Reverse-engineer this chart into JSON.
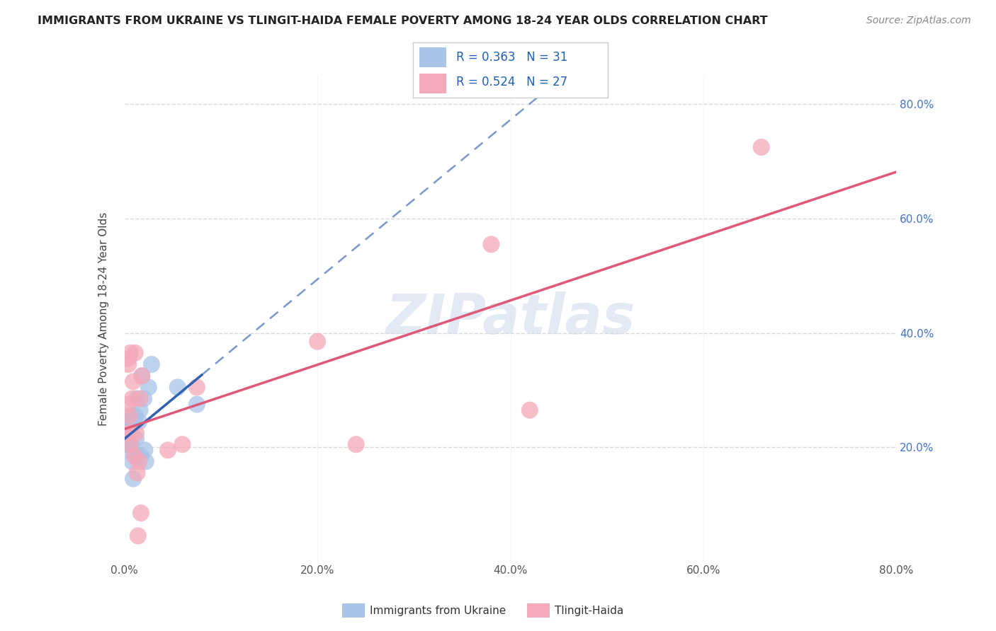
{
  "title": "IMMIGRANTS FROM UKRAINE VS TLINGIT-HAIDA FEMALE POVERTY AMONG 18-24 YEAR OLDS CORRELATION CHART",
  "source": "Source: ZipAtlas.com",
  "ylabel": "Female Poverty Among 18-24 Year Olds",
  "xlim": [
    0.0,
    0.8
  ],
  "ylim": [
    0.0,
    0.85
  ],
  "xtick_labels": [
    "0.0%",
    "",
    "",
    "",
    "",
    "",
    "",
    "",
    "20.0%",
    "",
    "",
    "",
    "",
    "",
    "",
    "",
    "40.0%",
    "",
    "",
    "",
    "",
    "",
    "",
    "",
    "60.0%",
    "",
    "",
    "",
    "",
    "",
    "",
    "",
    "80.0%"
  ],
  "xtick_vals": [
    0.0,
    0.025,
    0.05,
    0.075,
    0.1,
    0.125,
    0.15,
    0.175,
    0.2,
    0.225,
    0.25,
    0.275,
    0.3,
    0.325,
    0.35,
    0.375,
    0.4,
    0.425,
    0.45,
    0.475,
    0.5,
    0.525,
    0.55,
    0.575,
    0.6,
    0.625,
    0.65,
    0.675,
    0.7,
    0.725,
    0.75,
    0.775,
    0.8
  ],
  "xtick_major_labels": [
    "0.0%",
    "20.0%",
    "40.0%",
    "60.0%",
    "80.0%"
  ],
  "xtick_major_vals": [
    0.0,
    0.2,
    0.4,
    0.6,
    0.8
  ],
  "ytick_vals": [
    0.2,
    0.4,
    0.6,
    0.8
  ],
  "ytick_labels": [
    "20.0%",
    "40.0%",
    "60.0%",
    "80.0%"
  ],
  "ukraine_color": "#a8c4e8",
  "tlingit_color": "#f4a8b8",
  "ukraine_line_color": "#3060b0",
  "tlingit_line_color": "#e05878",
  "background_color": "#ffffff",
  "grid_color": "#d8d8d8",
  "watermark_color": "#ccd8ee",
  "ukraine_x": [
    0.003,
    0.003,
    0.004,
    0.004,
    0.004,
    0.005,
    0.005,
    0.005,
    0.006,
    0.006,
    0.007,
    0.007,
    0.008,
    0.009,
    0.009,
    0.01,
    0.011,
    0.012,
    0.013,
    0.013,
    0.015,
    0.016,
    0.017,
    0.018,
    0.02,
    0.021,
    0.022,
    0.025,
    0.028,
    0.055,
    0.075
  ],
  "ukraine_y": [
    0.225,
    0.215,
    0.245,
    0.225,
    0.205,
    0.235,
    0.205,
    0.195,
    0.215,
    0.235,
    0.205,
    0.225,
    0.175,
    0.145,
    0.255,
    0.245,
    0.255,
    0.215,
    0.285,
    0.185,
    0.245,
    0.265,
    0.185,
    0.325,
    0.285,
    0.195,
    0.175,
    0.305,
    0.345,
    0.305,
    0.275
  ],
  "tlingit_x": [
    0.003,
    0.004,
    0.004,
    0.005,
    0.005,
    0.006,
    0.006,
    0.007,
    0.008,
    0.009,
    0.01,
    0.011,
    0.012,
    0.013,
    0.014,
    0.015,
    0.016,
    0.017,
    0.018,
    0.045,
    0.06,
    0.075,
    0.2,
    0.24,
    0.38,
    0.42,
    0.66
  ],
  "tlingit_y": [
    0.275,
    0.355,
    0.345,
    0.225,
    0.255,
    0.365,
    0.205,
    0.225,
    0.285,
    0.315,
    0.185,
    0.365,
    0.225,
    0.155,
    0.045,
    0.175,
    0.285,
    0.085,
    0.325,
    0.195,
    0.205,
    0.305,
    0.385,
    0.205,
    0.555,
    0.265,
    0.725
  ],
  "legend_ukraine_r": "R = 0.363",
  "legend_ukraine_n": "N = 31",
  "legend_tlingit_r": "R = 0.524",
  "legend_tlingit_n": "N = 27"
}
